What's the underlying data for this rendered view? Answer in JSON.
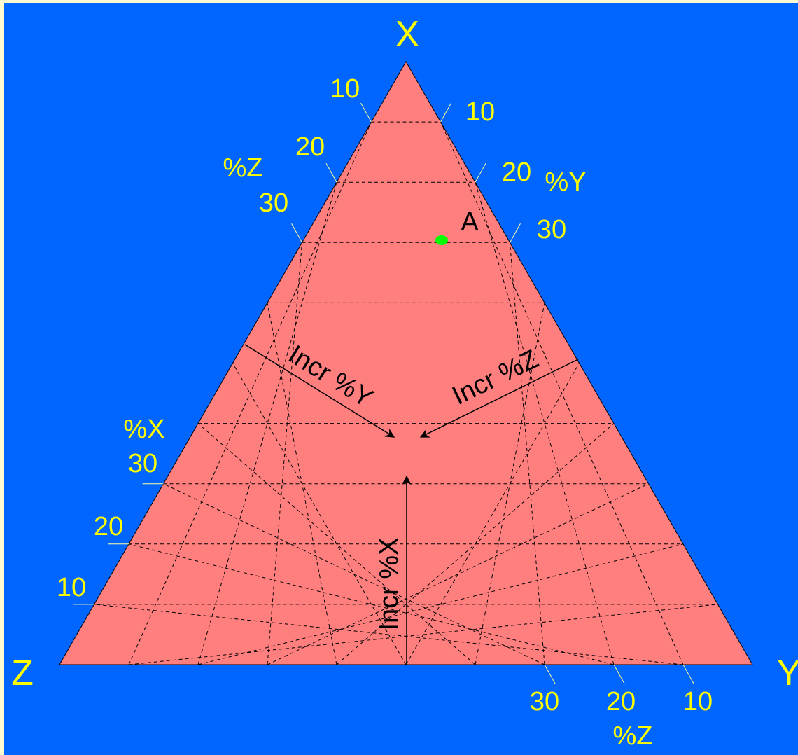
{
  "vertices": {
    "top": "X",
    "right": "Y",
    "left": "Z"
  },
  "left_edge": {
    "upper_axis_label": "%Z",
    "upper_ticks": [
      "10",
      "20",
      "30"
    ],
    "lower_axis_label": "%X",
    "lower_ticks": [
      "30",
      "20",
      "10"
    ]
  },
  "right_edge": {
    "axis_label": "%Y",
    "ticks": [
      "10",
      "20",
      "30"
    ]
  },
  "bottom_edge": {
    "axis_label": "%Z",
    "ticks": [
      "30",
      "20",
      "10"
    ]
  },
  "arrows": {
    "y": "Incr %Y",
    "z": "Incr %Z",
    "x": "Incr %X"
  },
  "point": {
    "label": "A",
    "color": "#00ff00"
  },
  "colors": {
    "background": "#0066ff",
    "triangle": "#ff7f7f",
    "labels": "#ffff00",
    "frame": "#fffbd0"
  }
}
